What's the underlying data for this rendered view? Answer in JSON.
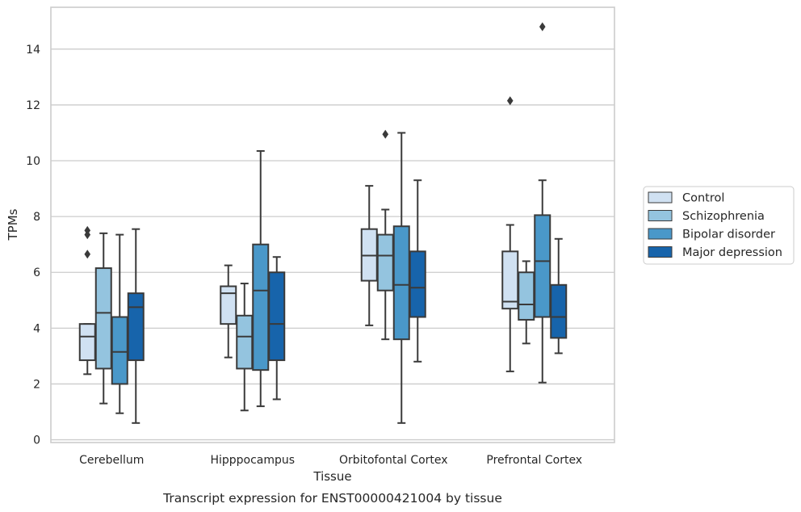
{
  "chart_data": {
    "type": "box",
    "xlabel": "Tissue",
    "ylabel": "TPMs",
    "caption": "Transcript expression for ENST00000421004 by tissue",
    "categories": [
      "Cerebellum",
      "Hipppocampus",
      "Orbitofontal Cortex",
      "Prefrontal Cortex"
    ],
    "ylim": [
      -0.1,
      15.5
    ],
    "yticks": [
      0,
      2,
      4,
      6,
      8,
      10,
      12,
      14
    ],
    "grid": "horizontal",
    "legend_position": "right",
    "series": [
      {
        "name": "Control",
        "color": "#d0e1f2",
        "boxes": [
          {
            "whisker_low": 2.35,
            "q1": 2.85,
            "median": 3.7,
            "q3": 4.15,
            "whisker_high": 4.15,
            "outliers": [
              7.5,
              7.35,
              6.65
            ]
          },
          {
            "whisker_low": 2.95,
            "q1": 4.15,
            "median": 5.25,
            "q3": 5.5,
            "whisker_high": 6.25,
            "outliers": []
          },
          {
            "whisker_low": 4.1,
            "q1": 5.7,
            "median": 6.6,
            "q3": 7.55,
            "whisker_high": 9.1,
            "outliers": []
          },
          {
            "whisker_low": 2.45,
            "q1": 4.7,
            "median": 4.95,
            "q3": 6.75,
            "whisker_high": 7.7,
            "outliers": [
              12.15
            ]
          }
        ]
      },
      {
        "name": "Schizophrenia",
        "color": "#94c4df",
        "boxes": [
          {
            "whisker_low": 1.3,
            "q1": 2.55,
            "median": 4.55,
            "q3": 6.15,
            "whisker_high": 7.4,
            "outliers": []
          },
          {
            "whisker_low": 1.05,
            "q1": 2.55,
            "median": 3.7,
            "q3": 4.45,
            "whisker_high": 5.6,
            "outliers": []
          },
          {
            "whisker_low": 3.6,
            "q1": 5.35,
            "median": 6.6,
            "q3": 7.35,
            "whisker_high": 8.25,
            "outliers": [
              10.95
            ]
          },
          {
            "whisker_low": 3.45,
            "q1": 4.3,
            "median": 4.85,
            "q3": 6.0,
            "whisker_high": 6.4,
            "outliers": []
          }
        ]
      },
      {
        "name": "Bipolar disorder",
        "color": "#4a98c9",
        "boxes": [
          {
            "whisker_low": 0.95,
            "q1": 2.0,
            "median": 3.15,
            "q3": 4.4,
            "whisker_high": 7.35,
            "outliers": []
          },
          {
            "whisker_low": 1.2,
            "q1": 2.5,
            "median": 5.35,
            "q3": 7.0,
            "whisker_high": 10.35,
            "outliers": []
          },
          {
            "whisker_low": 0.6,
            "q1": 3.6,
            "median": 5.55,
            "q3": 7.65,
            "whisker_high": 11.0,
            "outliers": []
          },
          {
            "whisker_low": 2.05,
            "q1": 4.4,
            "median": 6.4,
            "q3": 8.05,
            "whisker_high": 9.3,
            "outliers": [
              14.8
            ]
          }
        ]
      },
      {
        "name": "Major depression",
        "color": "#1764ab",
        "boxes": [
          {
            "whisker_low": 0.6,
            "q1": 2.85,
            "median": 4.75,
            "q3": 5.25,
            "whisker_high": 7.55,
            "outliers": []
          },
          {
            "whisker_low": 1.45,
            "q1": 2.85,
            "median": 4.15,
            "q3": 6.0,
            "whisker_high": 6.55,
            "outliers": []
          },
          {
            "whisker_low": 2.8,
            "q1": 4.4,
            "median": 5.45,
            "q3": 6.75,
            "whisker_high": 9.3,
            "outliers": []
          },
          {
            "whisker_low": 3.1,
            "q1": 3.65,
            "median": 4.4,
            "q3": 5.55,
            "whisker_high": 7.2,
            "outliers": []
          }
        ]
      }
    ]
  }
}
